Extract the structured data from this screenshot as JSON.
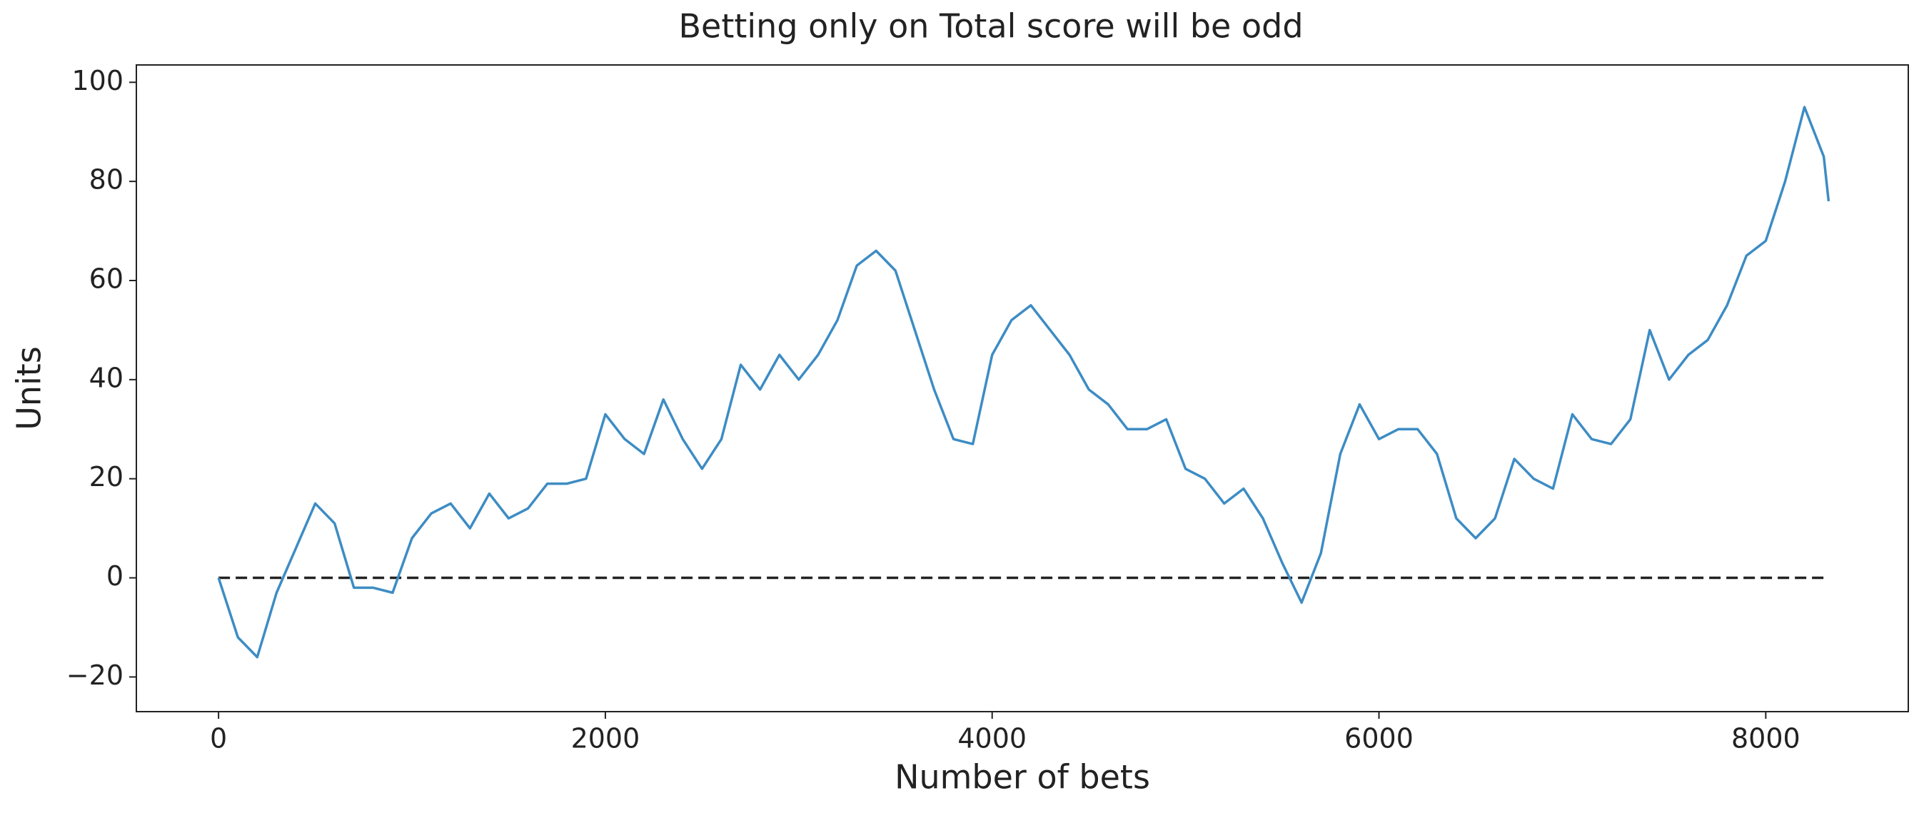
{
  "chart_data": {
    "type": "line",
    "title": "Betting only on Total score will be odd",
    "x_label": "Number of bets",
    "y_label": "Units",
    "x": [
      0,
      100,
      200,
      300,
      400,
      500,
      600,
      700,
      800,
      900,
      1000,
      1100,
      1200,
      1300,
      1400,
      1500,
      1600,
      1700,
      1800,
      1900,
      2000,
      2100,
      2200,
      2300,
      2400,
      2500,
      2600,
      2700,
      2800,
      2900,
      3000,
      3100,
      3200,
      3300,
      3400,
      3500,
      3600,
      3700,
      3800,
      3900,
      4000,
      4100,
      4200,
      4300,
      4400,
      4500,
      4600,
      4700,
      4800,
      4900,
      5000,
      5100,
      5200,
      5300,
      5400,
      5500,
      5600,
      5700,
      5800,
      5900,
      6000,
      6100,
      6200,
      6300,
      6400,
      6500,
      6600,
      6700,
      6800,
      6900,
      7000,
      7100,
      7200,
      7300,
      7400,
      7500,
      7600,
      7700,
      7800,
      7900,
      8000,
      8100,
      8200,
      8300,
      8325
    ],
    "series": [
      {
        "color": "#3d8cc4",
        "values": [
          0,
          -12,
          -16,
          -3,
          6,
          15,
          11,
          -2,
          -2,
          -3,
          8,
          13,
          15,
          10,
          17,
          12,
          14,
          19,
          19,
          20,
          33,
          28,
          25,
          36,
          28,
          22,
          28,
          43,
          38,
          45,
          40,
          45,
          52,
          63,
          66,
          62,
          50,
          38,
          28,
          27,
          45,
          52,
          55,
          50,
          45,
          38,
          35,
          30,
          30,
          32,
          22,
          20,
          15,
          18,
          12,
          3,
          -5,
          5,
          25,
          35,
          28,
          30,
          30,
          25,
          12,
          8,
          12,
          24,
          20,
          18,
          33,
          28,
          27,
          32,
          50,
          40,
          45,
          48,
          55,
          65,
          68,
          80,
          95,
          85,
          76
        ]
      }
    ],
    "reference_line": {
      "value": 0,
      "x": [
        0,
        8325
      ],
      "color": "#222222"
    },
    "xlim": [
      -425,
      8737
    ],
    "ylim": [
      -27,
      103.5
    ],
    "xticks": [
      0,
      2000,
      4000,
      6000,
      8000
    ],
    "yticks": [
      {
        "value": -20,
        "label": "−20"
      },
      0,
      20,
      40,
      60,
      80,
      100
    ]
  }
}
